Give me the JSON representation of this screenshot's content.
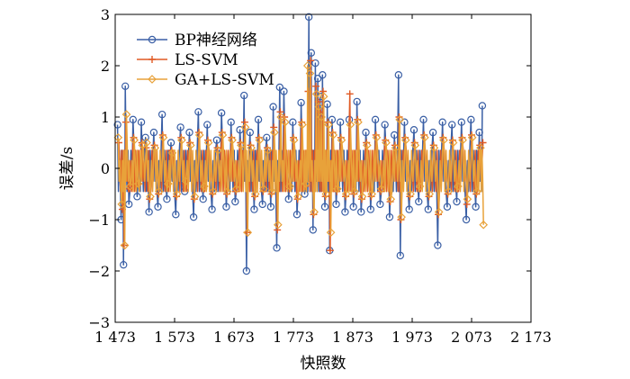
{
  "chart_data": {
    "type": "line",
    "title": "",
    "xlabel": "快照数",
    "ylabel": "误差/s",
    "xlim": [
      1473,
      2173
    ],
    "ylim": [
      -3,
      3
    ],
    "xticks": [
      1473,
      1573,
      1673,
      1773,
      1873,
      1973,
      2073,
      2173
    ],
    "xtick_labels": [
      "1 473",
      "1 573",
      "1 673",
      "1 773",
      "1 873",
      "1 973",
      "2 073",
      "2 173"
    ],
    "yticks": [
      -3,
      -2,
      -1,
      0,
      1,
      2,
      3
    ],
    "ytick_labels": [
      "−3",
      "−2",
      "−1",
      "0",
      "1",
      "2",
      "3"
    ],
    "legend_position": "top-left",
    "series": [
      {
        "name": "BP神经网络",
        "color": "#3a5fa5",
        "marker": "circle",
        "points": [
          [
            1477,
            0.85
          ],
          [
            1483,
            -1.0
          ],
          [
            1487,
            -1.88
          ],
          [
            1490,
            1.6
          ],
          [
            1496,
            -0.7
          ],
          [
            1503,
            0.95
          ],
          [
            1510,
            -0.55
          ],
          [
            1517,
            0.9
          ],
          [
            1524,
            0.6
          ],
          [
            1530,
            -0.85
          ],
          [
            1538,
            0.7
          ],
          [
            1545,
            -0.75
          ],
          [
            1552,
            1.05
          ],
          [
            1560,
            -0.6
          ],
          [
            1567,
            0.5
          ],
          [
            1575,
            -0.9
          ],
          [
            1583,
            0.8
          ],
          [
            1590,
            -0.45
          ],
          [
            1598,
            0.7
          ],
          [
            1605,
            -0.95
          ],
          [
            1613,
            1.1
          ],
          [
            1621,
            -0.6
          ],
          [
            1628,
            0.85
          ],
          [
            1636,
            -0.8
          ],
          [
            1644,
            0.55
          ],
          [
            1652,
            1.08
          ],
          [
            1660,
            -0.75
          ],
          [
            1668,
            0.9
          ],
          [
            1675,
            -0.65
          ],
          [
            1683,
            0.75
          ],
          [
            1690,
            1.42
          ],
          [
            1694,
            -2.0
          ],
          [
            1700,
            0.7
          ],
          [
            1707,
            -0.8
          ],
          [
            1714,
            0.95
          ],
          [
            1721,
            -0.7
          ],
          [
            1728,
            0.6
          ],
          [
            1735,
            -0.75
          ],
          [
            1739,
            1.2
          ],
          [
            1745,
            -1.55
          ],
          [
            1750,
            1.58
          ],
          [
            1757,
            1.5
          ],
          [
            1765,
            -0.6
          ],
          [
            1772,
            0.9
          ],
          [
            1779,
            -0.9
          ],
          [
            1786,
            1.28
          ],
          [
            1792,
            -0.5
          ],
          [
            1799,
            2.95
          ],
          [
            1803,
            2.25
          ],
          [
            1806,
            -1.2
          ],
          [
            1810,
            2.05
          ],
          [
            1814,
            1.75
          ],
          [
            1818,
            1.4
          ],
          [
            1822,
            1.82
          ],
          [
            1826,
            -0.75
          ],
          [
            1830,
            1.25
          ],
          [
            1834,
            -1.6
          ],
          [
            1838,
            0.95
          ],
          [
            1845,
            -0.7
          ],
          [
            1852,
            0.9
          ],
          [
            1860,
            -0.85
          ],
          [
            1867,
            0.95
          ],
          [
            1874,
            -0.75
          ],
          [
            1880,
            1.3
          ],
          [
            1887,
            -0.85
          ],
          [
            1895,
            0.7
          ],
          [
            1903,
            -0.8
          ],
          [
            1911,
            0.95
          ],
          [
            1919,
            -0.7
          ],
          [
            1927,
            0.85
          ],
          [
            1935,
            -0.95
          ],
          [
            1943,
            0.65
          ],
          [
            1950,
            1.82
          ],
          [
            1953,
            -1.7
          ],
          [
            1960,
            0.9
          ],
          [
            1968,
            -0.8
          ],
          [
            1976,
            0.75
          ],
          [
            1984,
            -0.65
          ],
          [
            1992,
            0.95
          ],
          [
            2000,
            -0.8
          ],
          [
            2008,
            0.7
          ],
          [
            2016,
            -1.5
          ],
          [
            2024,
            0.9
          ],
          [
            2032,
            -0.75
          ],
          [
            2040,
            0.85
          ],
          [
            2048,
            -0.65
          ],
          [
            2056,
            0.9
          ],
          [
            2064,
            -1.0
          ],
          [
            2072,
            0.95
          ],
          [
            2080,
            -0.75
          ],
          [
            2086,
            0.7
          ],
          [
            2091,
            1.22
          ]
        ]
      },
      {
        "name": "LS-SVM",
        "color": "#e05a24",
        "marker": "plus",
        "points": [
          [
            1479,
            0.5
          ],
          [
            1485,
            -0.8
          ],
          [
            1488,
            -1.5
          ],
          [
            1491,
            0.9
          ],
          [
            1497,
            -0.4
          ],
          [
            1504,
            0.6
          ],
          [
            1511,
            -0.3
          ],
          [
            1518,
            0.5
          ],
          [
            1525,
            0.4
          ],
          [
            1531,
            -0.6
          ],
          [
            1539,
            0.45
          ],
          [
            1546,
            -0.5
          ],
          [
            1553,
            0.65
          ],
          [
            1561,
            -0.35
          ],
          [
            1568,
            0.35
          ],
          [
            1576,
            -0.55
          ],
          [
            1584,
            0.6
          ],
          [
            1591,
            -0.3
          ],
          [
            1599,
            0.5
          ],
          [
            1606,
            -0.6
          ],
          [
            1614,
            0.7
          ],
          [
            1622,
            -0.4
          ],
          [
            1629,
            0.55
          ],
          [
            1637,
            -0.5
          ],
          [
            1645,
            0.4
          ],
          [
            1653,
            0.7
          ],
          [
            1661,
            -0.5
          ],
          [
            1669,
            0.6
          ],
          [
            1676,
            -0.45
          ],
          [
            1684,
            0.5
          ],
          [
            1691,
            0.9
          ],
          [
            1695,
            -1.25
          ],
          [
            1701,
            0.45
          ],
          [
            1708,
            -0.55
          ],
          [
            1715,
            0.6
          ],
          [
            1722,
            -0.45
          ],
          [
            1729,
            0.4
          ],
          [
            1736,
            -0.5
          ],
          [
            1740,
            0.8
          ],
          [
            1746,
            -1.2
          ],
          [
            1751,
            1.1
          ],
          [
            1758,
            1.0
          ],
          [
            1766,
            -0.4
          ],
          [
            1773,
            0.6
          ],
          [
            1780,
            -0.6
          ],
          [
            1787,
            0.9
          ],
          [
            1793,
            -0.35
          ],
          [
            1798,
            1.5
          ],
          [
            1802,
            2.1
          ],
          [
            1807,
            -0.9
          ],
          [
            1811,
            1.6
          ],
          [
            1815,
            1.3
          ],
          [
            1819,
            1.1
          ],
          [
            1823,
            1.5
          ],
          [
            1827,
            -0.55
          ],
          [
            1831,
            0.9
          ],
          [
            1835,
            -1.6
          ],
          [
            1839,
            0.7
          ],
          [
            1846,
            -0.45
          ],
          [
            1853,
            0.6
          ],
          [
            1861,
            -0.55
          ],
          [
            1868,
            1.45
          ],
          [
            1875,
            -0.5
          ],
          [
            1881,
            0.95
          ],
          [
            1888,
            -0.6
          ],
          [
            1896,
            0.5
          ],
          [
            1904,
            -0.55
          ],
          [
            1912,
            0.65
          ],
          [
            1920,
            -0.45
          ],
          [
            1928,
            0.55
          ],
          [
            1936,
            -0.65
          ],
          [
            1944,
            0.45
          ],
          [
            1951,
            1.0
          ],
          [
            1954,
            -1.0
          ],
          [
            1961,
            0.6
          ],
          [
            1969,
            -0.55
          ],
          [
            1977,
            0.5
          ],
          [
            1985,
            -0.4
          ],
          [
            1993,
            0.65
          ],
          [
            2001,
            -0.55
          ],
          [
            2009,
            0.45
          ],
          [
            2017,
            -0.9
          ],
          [
            2025,
            0.6
          ],
          [
            2033,
            -0.5
          ],
          [
            2041,
            0.55
          ],
          [
            2049,
            -0.4
          ],
          [
            2057,
            0.6
          ],
          [
            2065,
            -0.7
          ],
          [
            2073,
            0.65
          ],
          [
            2081,
            -0.5
          ],
          [
            2087,
            0.45
          ],
          [
            2092,
            0.5
          ]
        ]
      },
      {
        "name": "GA+LS-SVM",
        "color": "#e8a23a",
        "marker": "diamond",
        "points": [
          [
            1478,
            0.6
          ],
          [
            1484,
            -0.7
          ],
          [
            1489,
            -1.5
          ],
          [
            1492,
            1.05
          ],
          [
            1498,
            -0.35
          ],
          [
            1505,
            0.55
          ],
          [
            1512,
            -0.3
          ],
          [
            1519,
            0.45
          ],
          [
            1526,
            0.5
          ],
          [
            1532,
            -0.55
          ],
          [
            1540,
            0.4
          ],
          [
            1547,
            -0.45
          ],
          [
            1554,
            0.6
          ],
          [
            1562,
            -0.3
          ],
          [
            1569,
            0.3
          ],
          [
            1577,
            -0.5
          ],
          [
            1585,
            0.55
          ],
          [
            1592,
            -0.25
          ],
          [
            1600,
            0.45
          ],
          [
            1607,
            -0.55
          ],
          [
            1615,
            0.65
          ],
          [
            1623,
            -0.35
          ],
          [
            1630,
            0.5
          ],
          [
            1638,
            -0.45
          ],
          [
            1646,
            0.35
          ],
          [
            1654,
            0.65
          ],
          [
            1662,
            -0.45
          ],
          [
            1670,
            0.55
          ],
          [
            1677,
            -0.4
          ],
          [
            1685,
            0.45
          ],
          [
            1692,
            0.8
          ],
          [
            1696,
            -1.25
          ],
          [
            1702,
            0.4
          ],
          [
            1709,
            -0.5
          ],
          [
            1716,
            0.55
          ],
          [
            1723,
            -0.4
          ],
          [
            1730,
            0.35
          ],
          [
            1737,
            -0.45
          ],
          [
            1741,
            0.7
          ],
          [
            1747,
            -1.1
          ],
          [
            1752,
            1.0
          ],
          [
            1759,
            0.9
          ],
          [
            1767,
            -0.35
          ],
          [
            1774,
            0.55
          ],
          [
            1781,
            -0.55
          ],
          [
            1788,
            0.85
          ],
          [
            1794,
            -0.3
          ],
          [
            1797,
            2.0
          ],
          [
            1801,
            1.85
          ],
          [
            1808,
            -0.85
          ],
          [
            1812,
            1.45
          ],
          [
            1816,
            1.2
          ],
          [
            1820,
            1.0
          ],
          [
            1824,
            1.4
          ],
          [
            1828,
            -0.5
          ],
          [
            1832,
            0.85
          ],
          [
            1836,
            -1.25
          ],
          [
            1840,
            0.65
          ],
          [
            1847,
            -0.4
          ],
          [
            1854,
            0.55
          ],
          [
            1862,
            -0.5
          ],
          [
            1869,
            0.85
          ],
          [
            1876,
            -0.45
          ],
          [
            1882,
            0.9
          ],
          [
            1889,
            -0.55
          ],
          [
            1897,
            0.45
          ],
          [
            1905,
            -0.5
          ],
          [
            1913,
            0.6
          ],
          [
            1921,
            -0.4
          ],
          [
            1929,
            0.5
          ],
          [
            1937,
            -0.6
          ],
          [
            1945,
            0.4
          ],
          [
            1952,
            0.95
          ],
          [
            1955,
            -0.95
          ],
          [
            1962,
            0.55
          ],
          [
            1970,
            -0.5
          ],
          [
            1978,
            0.45
          ],
          [
            1986,
            -0.35
          ],
          [
            1994,
            0.6
          ],
          [
            2002,
            -0.5
          ],
          [
            2010,
            0.4
          ],
          [
            2018,
            -0.85
          ],
          [
            2026,
            0.55
          ],
          [
            2034,
            -0.45
          ],
          [
            2042,
            0.5
          ],
          [
            2050,
            -0.35
          ],
          [
            2058,
            0.55
          ],
          [
            2066,
            -0.6
          ],
          [
            2074,
            0.6
          ],
          [
            2082,
            -0.45
          ],
          [
            2088,
            0.4
          ],
          [
            2093,
            -1.1
          ]
        ]
      }
    ]
  }
}
